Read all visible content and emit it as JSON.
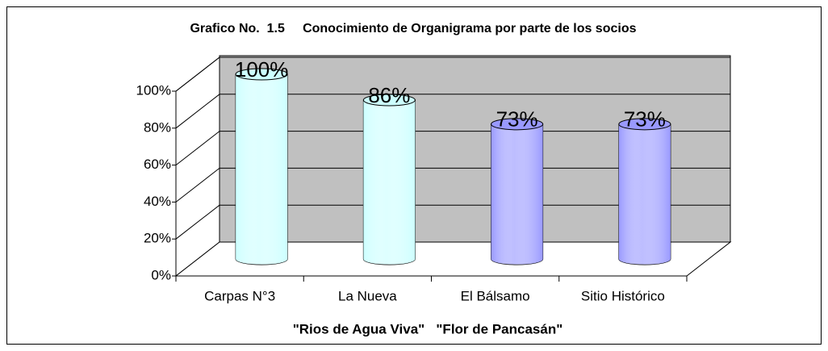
{
  "chart_data": {
    "type": "bar3d",
    "title": "Grafico No.  1.5     Conocimiento de Organigrama por parte de los socios",
    "x_label": "\"Rios de Agua Viva\"   \"Flor de Pancasán\"",
    "categories": [
      "Carpas N°3",
      "La Nueva",
      "El Bálsamo",
      "Sitio Histórico"
    ],
    "values": [
      100,
      86,
      73,
      73
    ],
    "value_labels": [
      "100%",
      "86%",
      "73%",
      "73%"
    ],
    "colors": [
      "#ccffff",
      "#ccffff",
      "#9999ff",
      "#9999ff"
    ],
    "ylim": [
      0,
      100
    ],
    "yticks": [
      {
        "value": 0,
        "label": "0%"
      },
      {
        "value": 20,
        "label": "20%"
      },
      {
        "value": 40,
        "label": "40%"
      },
      {
        "value": 60,
        "label": "60%"
      },
      {
        "value": 80,
        "label": "80%"
      },
      {
        "value": 100,
        "label": "100%"
      }
    ],
    "grid": true
  }
}
